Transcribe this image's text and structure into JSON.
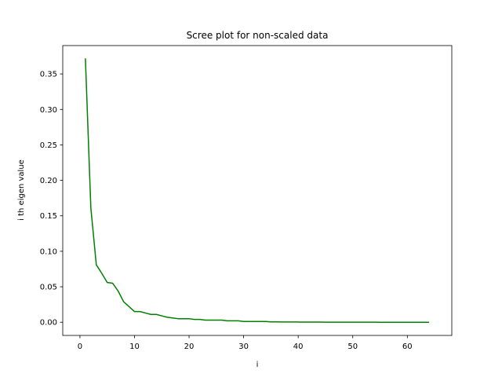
{
  "chart_data": {
    "type": "line",
    "title": "Scree plot for non-scaled data",
    "xlabel": "i",
    "ylabel": "i th eigen value",
    "xlim": [
      -3.15,
      68.15
    ],
    "ylim": [
      -0.0186,
      0.39
    ],
    "xticks": [
      0,
      10,
      20,
      30,
      40,
      50,
      60
    ],
    "xtick_labels": [
      "0",
      "10",
      "20",
      "30",
      "40",
      "50",
      "60"
    ],
    "yticks": [
      0.0,
      0.05,
      0.1,
      0.15,
      0.2,
      0.25,
      0.3,
      0.35
    ],
    "ytick_labels": [
      "0.00",
      "0.05",
      "0.10",
      "0.15",
      "0.20",
      "0.25",
      "0.30",
      "0.35"
    ],
    "grid": false,
    "legend": "none",
    "series": [
      {
        "color": "#008000",
        "x": [
          1,
          2,
          3,
          4,
          5,
          6,
          7,
          8,
          9,
          10,
          11,
          12,
          13,
          14,
          15,
          16,
          17,
          18,
          19,
          20,
          21,
          22,
          23,
          24,
          25,
          26,
          27,
          28,
          29,
          30,
          31,
          32,
          33,
          34,
          35,
          36,
          37,
          38,
          39,
          40,
          41,
          42,
          43,
          44,
          45,
          46,
          47,
          48,
          49,
          50,
          51,
          52,
          53,
          54,
          55,
          56,
          57,
          58,
          59,
          60,
          61,
          62,
          63,
          64
        ],
        "y": [
          0.372,
          0.161,
          0.081,
          0.069,
          0.056,
          0.055,
          0.044,
          0.029,
          0.022,
          0.015,
          0.015,
          0.013,
          0.011,
          0.011,
          0.009,
          0.007,
          0.006,
          0.005,
          0.005,
          0.005,
          0.004,
          0.004,
          0.003,
          0.003,
          0.003,
          0.003,
          0.002,
          0.002,
          0.002,
          0.001,
          0.001,
          0.001,
          0.001,
          0.001,
          0.0005,
          0.0005,
          0.0004,
          0.0003,
          0.0003,
          0.0003,
          0.0002,
          0.0002,
          0.0002,
          0.0002,
          0.0001,
          0.0001,
          0.0001,
          0.0001,
          0.0001,
          0.0001,
          0.0001,
          0.0001,
          0.0001,
          0.0001,
          0.0,
          0.0,
          0.0,
          0.0,
          0.0,
          0.0,
          0.0,
          0.0,
          0.0,
          0.0
        ]
      }
    ]
  }
}
